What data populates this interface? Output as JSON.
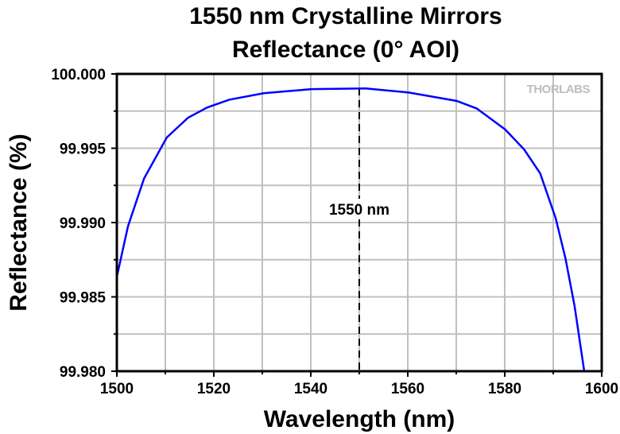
{
  "chart_data": {
    "type": "line",
    "title": "1550 nm Crystalline Mirrors",
    "subtitle": "Reflectance (0° AOI)",
    "xlabel": "Wavelength (nm)",
    "ylabel": "Reflectance (%)",
    "xlim": [
      1500,
      1600
    ],
    "ylim": [
      99.98,
      100.0
    ],
    "xticks": [
      "1500",
      "1520",
      "1540",
      "1560",
      "1580",
      "1600"
    ],
    "yticks": [
      "99.980",
      "99.985",
      "99.990",
      "99.995",
      "100.000"
    ],
    "grid": true,
    "annotation": {
      "text": "1550 nm",
      "x": 1550
    },
    "watermark": "THORLABS",
    "series": [
      {
        "name": "Reflectance",
        "color": "#0000ff",
        "x": [
          1500,
          1502.3,
          1505.6,
          1510.3,
          1514.7,
          1518.6,
          1523.2,
          1530.3,
          1540.2,
          1551.3,
          1560.2,
          1570.1,
          1574.2,
          1580.1,
          1584,
          1587.3,
          1590.5,
          1592.5,
          1594.4,
          1596.4
        ],
        "y": [
          99.98636,
          99.98975,
          99.99296,
          99.99572,
          99.99706,
          99.99774,
          99.99827,
          99.9987,
          99.99898,
          99.99902,
          99.99875,
          99.99818,
          99.99768,
          99.99626,
          99.99492,
          99.99332,
          99.99029,
          99.98761,
          99.9844,
          99.98
        ]
      }
    ]
  }
}
